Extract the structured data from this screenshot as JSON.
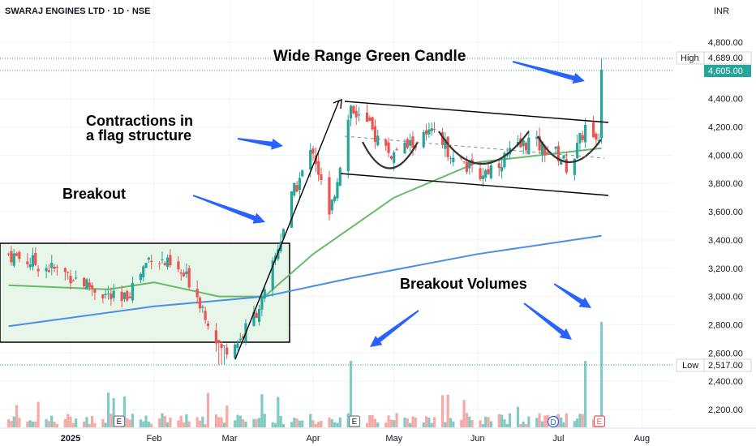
{
  "header": {
    "symbol": "SWARAJ ENGINES LTD · 1D · NSE",
    "currency": "INR"
  },
  "colors": {
    "up": "#26a69a",
    "down": "#ef5350",
    "vol_up": "#80cbc4",
    "vol_down": "#f7a9a7",
    "ma_fast": "#66bb6a",
    "ma_slow": "#4a90e2",
    "box_fill": "#e8f5e9",
    "arrow": "#2962ff",
    "current_price_bg": "#26a69a"
  },
  "axis": {
    "price_ticks": [
      "4,800.00",
      "4,600.00",
      "4,400.00",
      "4,200.00",
      "4,000.00",
      "3,800.00",
      "3,600.00",
      "3,400.00",
      "3,200.00",
      "3,000.00",
      "2,800.00",
      "2,600.00",
      "2,400.00",
      "2,200.00"
    ],
    "time_ticks": [
      "2025",
      "Feb",
      "Mar",
      "Apr",
      "May",
      "Jun",
      "Jul",
      "Aug"
    ]
  },
  "price_labels": {
    "high_label": "High",
    "high_value": "4,689.00",
    "current_value": "4,605.00",
    "low_label": "Low",
    "low_value": "2,517.00"
  },
  "event_markers": [
    "E",
    "E",
    "D",
    "E"
  ],
  "annotations": {
    "wide_range": "Wide Range Green Candle",
    "contractions_1": "Contractions in",
    "contractions_2": "a flag structure",
    "breakout": "Breakout",
    "breakout_volumes": "Breakout Volumes"
  },
  "chart_data": {
    "type": "candlestick",
    "title": "SWARAJ ENGINES LTD · 1D · NSE",
    "ylim": [
      2100,
      4900
    ],
    "x_range": [
      "2024-12-09",
      "2025-08-10"
    ],
    "high": 4689,
    "low": 2517,
    "last": 4605,
    "ohlc_anchors": [
      {
        "date": "2024-12-09",
        "close": 3300
      },
      {
        "date": "2025-01-01",
        "close": 3150
      },
      {
        "date": "2025-01-20",
        "close": 2950
      },
      {
        "date": "2025-01-31",
        "close": 3300
      },
      {
        "date": "2025-02-15",
        "close": 3100
      },
      {
        "date": "2025-02-26",
        "close": 2620
      },
      {
        "date": "2025-03-05",
        "close": 2700
      },
      {
        "date": "2025-03-14",
        "close": 3000
      },
      {
        "date": "2025-03-24",
        "close": 3700
      },
      {
        "date": "2025-04-01",
        "close": 4050
      },
      {
        "date": "2025-04-07",
        "close": 3550
      },
      {
        "date": "2025-04-15",
        "close": 4350
      },
      {
        "date": "2025-04-30",
        "close": 4000
      },
      {
        "date": "2025-05-15",
        "close": 4150
      },
      {
        "date": "2025-06-01",
        "close": 3850
      },
      {
        "date": "2025-06-20",
        "close": 4100
      },
      {
        "date": "2025-07-01",
        "close": 4000
      },
      {
        "date": "2025-07-05",
        "close": 3900
      },
      {
        "date": "2025-07-12",
        "close": 4250
      },
      {
        "date": "2025-07-16",
        "close": 4100
      },
      {
        "date": "2025-07-17",
        "close": 4605
      }
    ],
    "series": [
      {
        "name": "",
        "type": "sma",
        "values": [
          {
            "date": "2024-12-09",
            "value": 3080
          },
          {
            "date": "2025-01-15",
            "value": 3050
          },
          {
            "date": "2025-02-01",
            "value": 3100
          },
          {
            "date": "2025-02-25",
            "value": 3000
          },
          {
            "date": "2025-03-14",
            "value": 3000
          },
          {
            "date": "2025-04-01",
            "value": 3300
          },
          {
            "date": "2025-05-01",
            "value": 3700
          },
          {
            "date": "2025-06-01",
            "value": 3950
          },
          {
            "date": "2025-07-17",
            "value": 4050
          }
        ]
      },
      {
        "name": "",
        "type": "sma",
        "values": [
          {
            "date": "2024-12-09",
            "value": 2790
          },
          {
            "date": "2025-02-01",
            "value": 2930
          },
          {
            "date": "2025-03-14",
            "value": 3000
          },
          {
            "date": "2025-04-15",
            "value": 3130
          },
          {
            "date": "2025-06-01",
            "value": 3300
          },
          {
            "date": "2025-07-17",
            "value": 3430
          }
        ]
      }
    ],
    "breakout_volume_dates": [
      "2025-04-15",
      "2025-07-11",
      "2025-07-17"
    ]
  }
}
